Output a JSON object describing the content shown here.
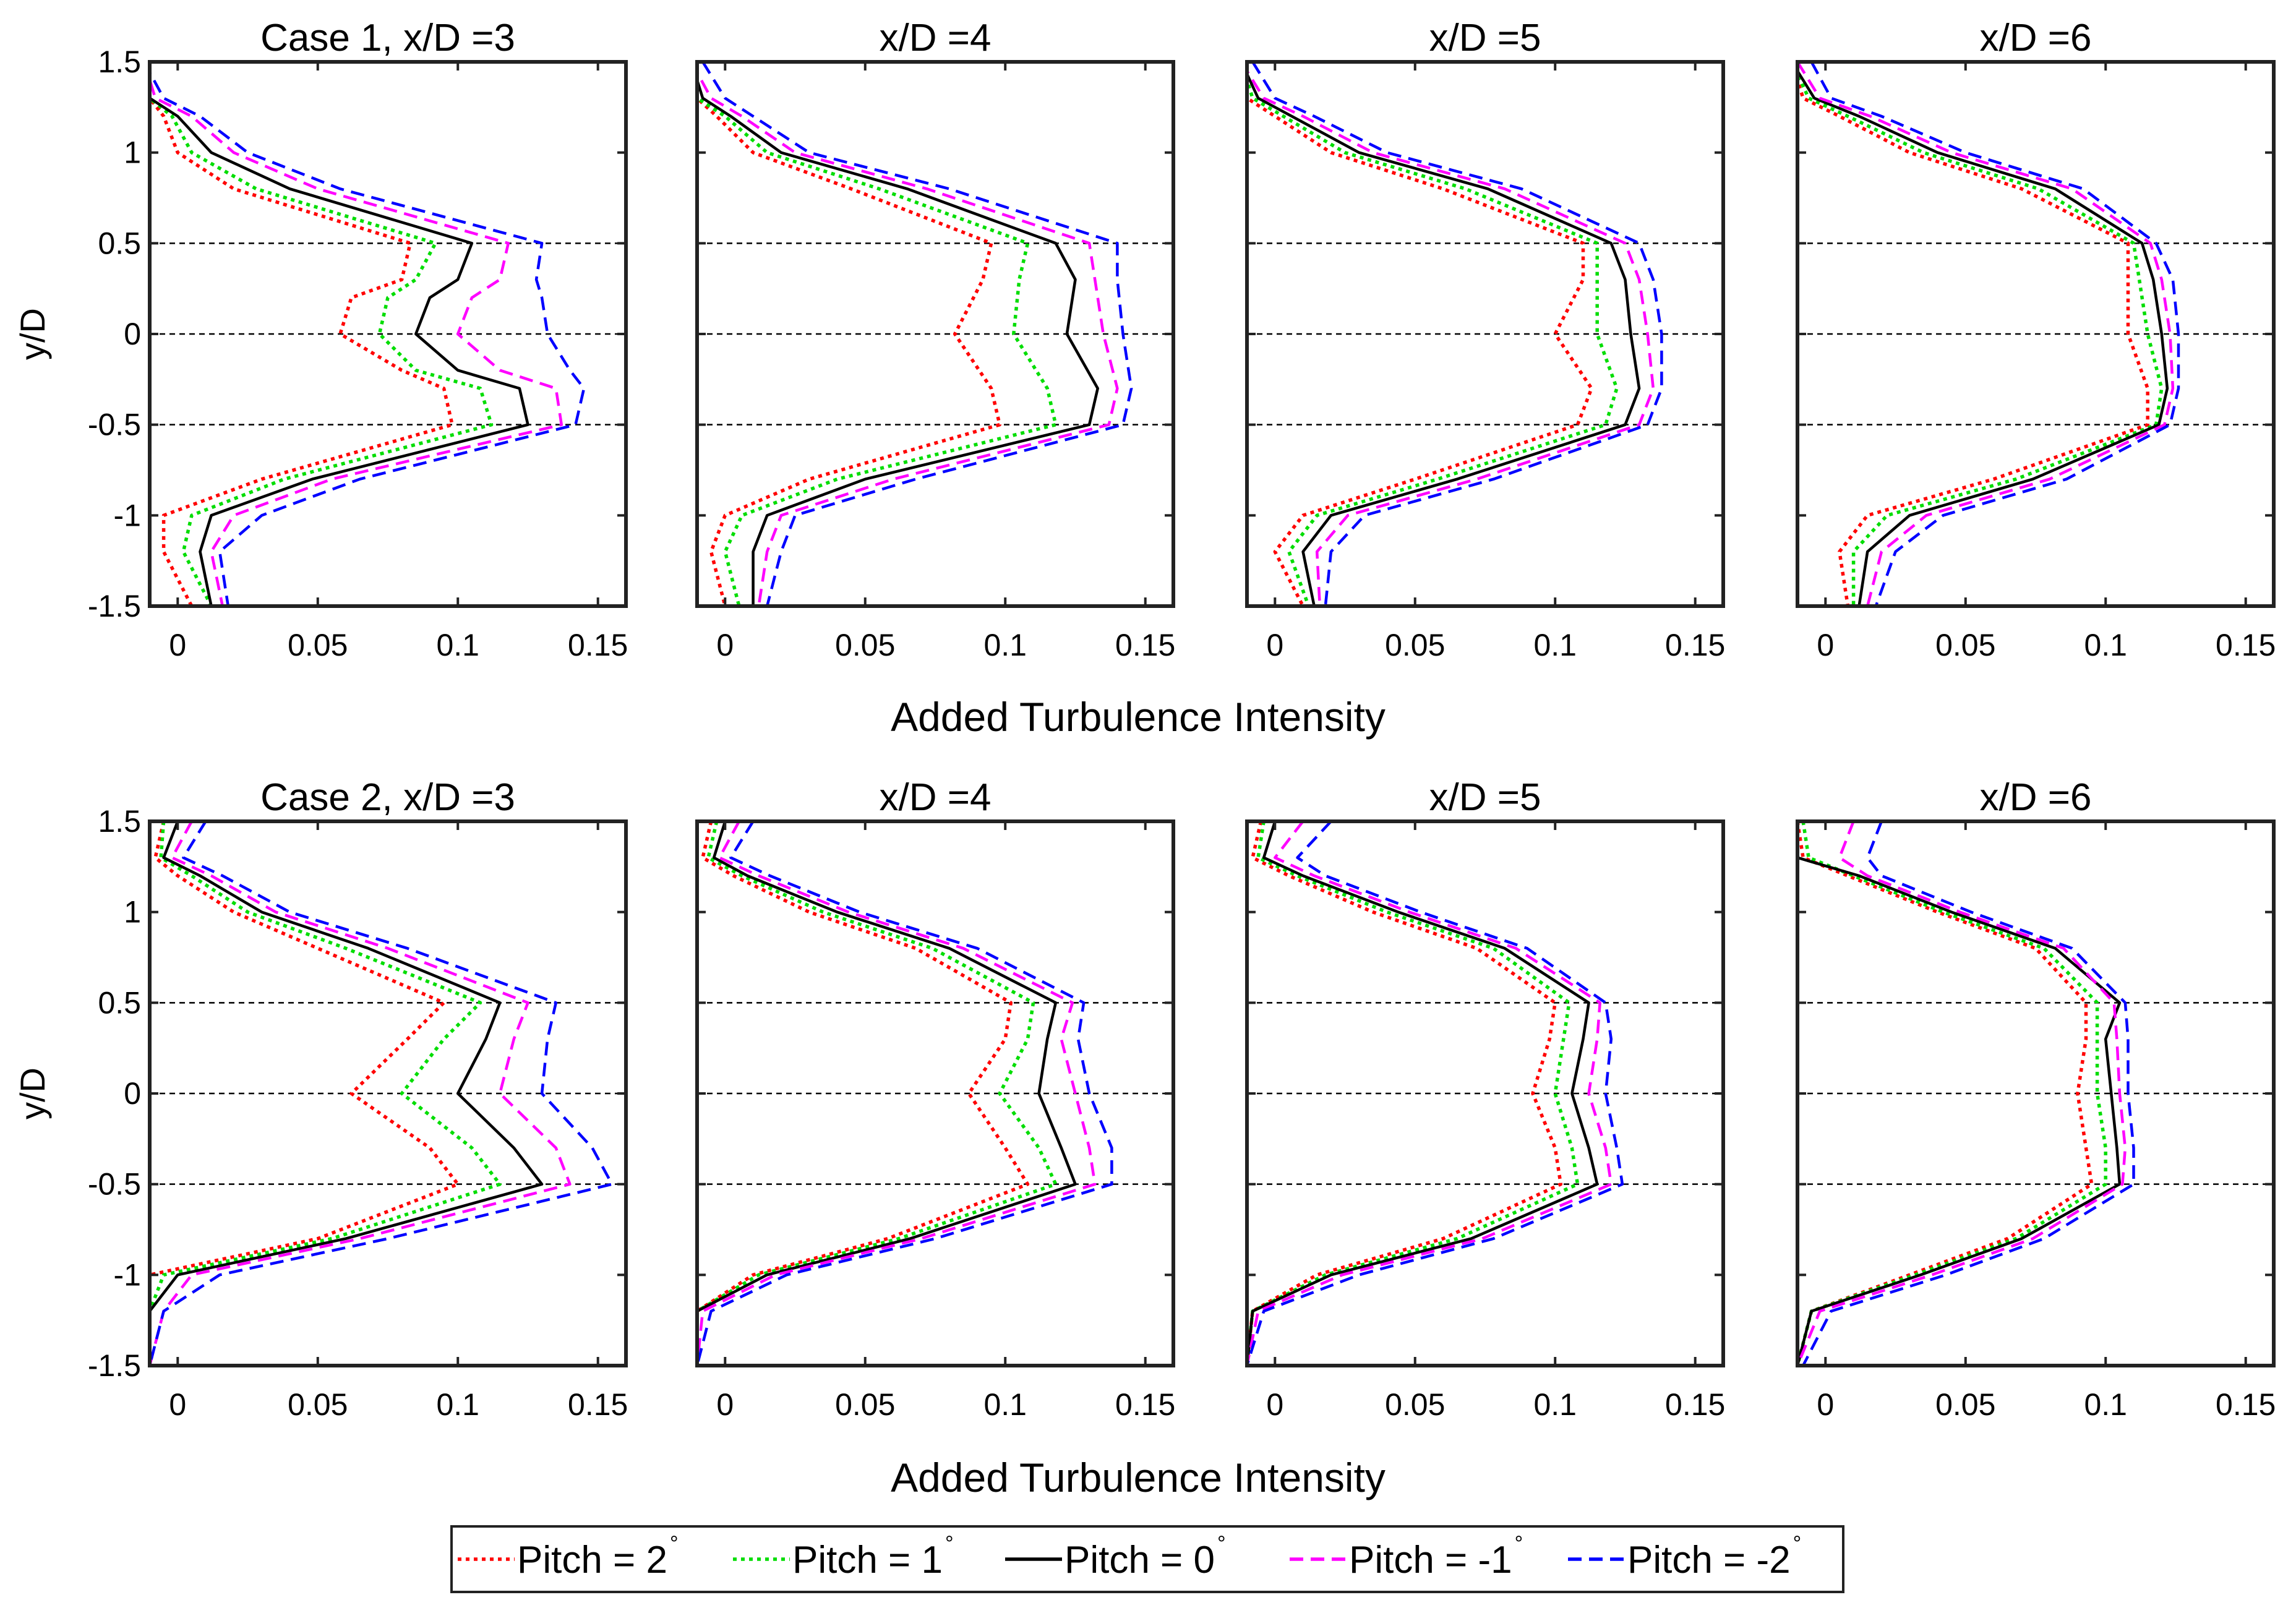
{
  "chart_data": {
    "type": "line",
    "ylabel": "y/D",
    "xlabel": "Added Turbulence Intensity",
    "xlim": [
      -0.01,
      0.16
    ],
    "ylim": [
      -1.5,
      1.5
    ],
    "xticks": [
      "0",
      "0.05",
      "0.1",
      "0.15"
    ],
    "yticks": [
      "1.5",
      "1",
      "0.5",
      "0",
      "-0.5",
      "-1",
      "-1.5"
    ],
    "reference_lines_y": [
      0.5,
      0,
      -0.5
    ],
    "legend_placement": "bottom-center",
    "series_styles": [
      {
        "name": "Pitch = 2",
        "degree_symbol": "°",
        "color": "#ff0000",
        "dash": "dotted"
      },
      {
        "name": "Pitch = 1",
        "degree_symbol": "°",
        "color": "#00dd00",
        "dash": "dotted"
      },
      {
        "name": "Pitch = 0",
        "degree_symbol": "°",
        "color": "#000000",
        "dash": "solid"
      },
      {
        "name": "Pitch = -1",
        "degree_symbol": "°",
        "color": "#ff00ff",
        "dash": "dashed"
      },
      {
        "name": "Pitch = -2",
        "degree_symbol": "°",
        "color": "#0000ff",
        "dash": "dashed"
      }
    ],
    "panels": [
      {
        "title": "Case 1, x/D =3",
        "y": [
          1.5,
          1.3,
          1.2,
          1.0,
          0.8,
          0.5,
          0.3,
          0.2,
          0.0,
          -0.2,
          -0.3,
          -0.5,
          -0.8,
          -1.0,
          -1.2,
          -1.5
        ],
        "series": [
          {
            "name": "Pitch = 2",
            "values": [
              -0.012,
              -0.01,
              -0.005,
              0.0,
              0.02,
              0.083,
              0.08,
              0.062,
              0.058,
              0.08,
              0.095,
              0.098,
              0.03,
              -0.005,
              -0.005,
              0.005
            ]
          },
          {
            "name": "Pitch = 1",
            "values": [
              -0.012,
              -0.01,
              -0.002,
              0.005,
              0.028,
              0.092,
              0.085,
              0.075,
              0.072,
              0.085,
              0.108,
              0.112,
              0.038,
              0.005,
              0.002,
              0.012
            ]
          },
          {
            "name": "Pitch = 0",
            "values": [
              -0.012,
              -0.01,
              0.0,
              0.012,
              0.04,
              0.105,
              0.1,
              0.09,
              0.085,
              0.1,
              0.122,
              0.125,
              0.048,
              0.012,
              0.008,
              0.012
            ]
          },
          {
            "name": "Pitch = -1",
            "values": [
              -0.012,
              -0.008,
              0.005,
              0.02,
              0.05,
              0.118,
              0.115,
              0.105,
              0.1,
              0.115,
              0.135,
              0.137,
              0.055,
              0.02,
              0.012,
              0.016
            ]
          },
          {
            "name": "Pitch = -2",
            "values": [
              -0.012,
              -0.005,
              0.008,
              0.025,
              0.058,
              0.13,
              0.128,
              0.13,
              0.132,
              0.14,
              0.145,
              0.142,
              0.065,
              0.03,
              0.015,
              0.018
            ]
          }
        ]
      },
      {
        "title": "x/D =4",
        "y": [
          1.5,
          1.3,
          1.2,
          1.0,
          0.8,
          0.5,
          0.3,
          0.0,
          -0.3,
          -0.5,
          -0.8,
          -1.0,
          -1.2,
          -1.5
        ],
        "series": [
          {
            "name": "Pitch = 2",
            "values": [
              -0.012,
              -0.01,
              -0.003,
              0.01,
              0.045,
              0.095,
              0.092,
              0.082,
              0.095,
              0.098,
              0.03,
              0.0,
              -0.005,
              0.0
            ]
          },
          {
            "name": "Pitch = 1",
            "values": [
              -0.012,
              -0.01,
              0.0,
              0.015,
              0.055,
              0.108,
              0.105,
              0.103,
              0.115,
              0.118,
              0.04,
              0.006,
              0.0,
              0.005
            ]
          },
          {
            "name": "Pitch = 0",
            "values": [
              -0.012,
              -0.008,
              0.002,
              0.02,
              0.065,
              0.118,
              0.125,
              0.122,
              0.133,
              0.13,
              0.05,
              0.015,
              0.01,
              0.01
            ]
          },
          {
            "name": "Pitch = -1",
            "values": [
              -0.012,
              -0.005,
              0.006,
              0.025,
              0.072,
              0.13,
              0.132,
              0.135,
              0.14,
              0.137,
              0.06,
              0.02,
              0.015,
              0.012
            ]
          },
          {
            "name": "Pitch = -2",
            "values": [
              -0.008,
              0.0,
              0.01,
              0.03,
              0.08,
              0.14,
              0.14,
              0.142,
              0.145,
              0.142,
              0.068,
              0.025,
              0.02,
              0.015
            ]
          }
        ]
      },
      {
        "title": "x/D =5",
        "y": [
          1.5,
          1.3,
          1.2,
          1.0,
          0.8,
          0.5,
          0.3,
          0.0,
          -0.3,
          -0.5,
          -0.8,
          -1.0,
          -1.2,
          -1.5
        ],
        "series": [
          {
            "name": "Pitch = 2",
            "values": [
              -0.012,
              -0.01,
              0.0,
              0.02,
              0.06,
              0.11,
              0.11,
              0.1,
              0.113,
              0.108,
              0.05,
              0.01,
              0.0,
              0.01
            ]
          },
          {
            "name": "Pitch = 1",
            "values": [
              -0.012,
              -0.008,
              0.003,
              0.025,
              0.068,
              0.115,
              0.115,
              0.115,
              0.122,
              0.118,
              0.058,
              0.015,
              0.005,
              0.012
            ]
          },
          {
            "name": "Pitch = 0",
            "values": [
              -0.012,
              -0.006,
              0.006,
              0.03,
              0.076,
              0.12,
              0.125,
              0.127,
              0.13,
              0.125,
              0.065,
              0.02,
              0.01,
              0.014
            ]
          },
          {
            "name": "Pitch = -1",
            "values": [
              -0.012,
              -0.004,
              0.01,
              0.035,
              0.082,
              0.125,
              0.13,
              0.133,
              0.135,
              0.13,
              0.072,
              0.026,
              0.015,
              0.016
            ]
          },
          {
            "name": "Pitch = -2",
            "values": [
              -0.008,
              0.0,
              0.014,
              0.04,
              0.088,
              0.13,
              0.135,
              0.138,
              0.138,
              0.133,
              0.078,
              0.032,
              0.02,
              0.018
            ]
          }
        ]
      },
      {
        "title": "x/D =6",
        "y": [
          1.5,
          1.3,
          1.2,
          1.0,
          0.8,
          0.5,
          0.3,
          0.0,
          -0.3,
          -0.5,
          -0.8,
          -1.0,
          -1.2,
          -1.5
        ],
        "series": [
          {
            "name": "Pitch = 2",
            "values": [
              -0.012,
              -0.008,
              0.005,
              0.03,
              0.07,
              0.108,
              0.108,
              0.108,
              0.115,
              0.115,
              0.06,
              0.015,
              0.005,
              0.008
            ]
          },
          {
            "name": "Pitch = 1",
            "values": [
              -0.012,
              -0.006,
              0.008,
              0.035,
              0.076,
              0.11,
              0.112,
              0.115,
              0.12,
              0.118,
              0.068,
              0.022,
              0.01,
              0.01
            ]
          },
          {
            "name": "Pitch = 0",
            "values": [
              -0.012,
              -0.004,
              0.012,
              0.04,
              0.082,
              0.113,
              0.117,
              0.12,
              0.122,
              0.119,
              0.074,
              0.03,
              0.015,
              0.012
            ]
          },
          {
            "name": "Pitch = -1",
            "values": [
              -0.01,
              -0.002,
              0.016,
              0.045,
              0.088,
              0.116,
              0.12,
              0.123,
              0.124,
              0.121,
              0.08,
              0.036,
              0.02,
              0.015
            ]
          },
          {
            "name": "Pitch = -2",
            "values": [
              -0.005,
              0.002,
              0.02,
              0.05,
              0.092,
              0.118,
              0.124,
              0.126,
              0.126,
              0.123,
              0.086,
              0.042,
              0.025,
              0.018
            ]
          }
        ]
      },
      {
        "title": "Case 2, x/D =3",
        "y": [
          1.5,
          1.3,
          1.2,
          1.0,
          0.8,
          0.5,
          0.3,
          0.0,
          -0.3,
          -0.5,
          -0.8,
          -1.0,
          -1.2,
          -1.5
        ],
        "series": [
          {
            "name": "Pitch = 2",
            "values": [
              -0.005,
              -0.008,
              0.0,
              0.02,
              0.05,
              0.095,
              0.082,
              0.062,
              0.09,
              0.1,
              0.05,
              -0.01,
              -0.01,
              -0.01
            ]
          },
          {
            "name": "Pitch = 1",
            "values": [
              -0.005,
              -0.006,
              0.005,
              0.025,
              0.06,
              0.108,
              0.095,
              0.08,
              0.105,
              0.115,
              0.055,
              -0.005,
              -0.01,
              -0.01
            ]
          },
          {
            "name": "Pitch = 0",
            "values": [
              0.0,
              -0.005,
              0.008,
              0.03,
              0.068,
              0.115,
              0.11,
              0.1,
              0.12,
              0.13,
              0.06,
              0.0,
              -0.01,
              -0.01
            ]
          },
          {
            "name": "Pitch = -1",
            "values": [
              0.005,
              -0.002,
              0.012,
              0.035,
              0.075,
              0.125,
              0.12,
              0.115,
              0.135,
              0.14,
              0.065,
              0.005,
              -0.005,
              -0.01
            ]
          },
          {
            "name": "Pitch = -2",
            "values": [
              0.01,
              0.002,
              0.016,
              0.04,
              0.082,
              0.135,
              0.132,
              0.13,
              0.148,
              0.155,
              0.075,
              0.015,
              -0.005,
              -0.01
            ]
          }
        ]
      },
      {
        "title": "x/D =4",
        "y": [
          1.5,
          1.3,
          1.2,
          1.0,
          0.8,
          0.5,
          0.3,
          0.0,
          -0.3,
          -0.5,
          -0.8,
          -1.0,
          -1.2,
          -1.5
        ],
        "series": [
          {
            "name": "Pitch = 2",
            "values": [
              -0.005,
              -0.008,
              0.003,
              0.03,
              0.068,
              0.102,
              0.1,
              0.087,
              0.1,
              0.108,
              0.058,
              0.01,
              -0.01,
              -0.01
            ]
          },
          {
            "name": "Pitch = 1",
            "values": [
              -0.003,
              -0.006,
              0.006,
              0.035,
              0.074,
              0.11,
              0.108,
              0.098,
              0.112,
              0.118,
              0.062,
              0.012,
              -0.01,
              -0.01
            ]
          },
          {
            "name": "Pitch = 0",
            "values": [
              0.0,
              -0.004,
              0.008,
              0.04,
              0.08,
              0.118,
              0.115,
              0.112,
              0.12,
              0.125,
              0.066,
              0.015,
              -0.01,
              -0.01
            ]
          },
          {
            "name": "Pitch = -1",
            "values": [
              0.005,
              -0.002,
              0.012,
              0.044,
              0.085,
              0.124,
              0.12,
              0.125,
              0.13,
              0.132,
              0.07,
              0.018,
              -0.008,
              -0.01
            ]
          },
          {
            "name": "Pitch = -2",
            "values": [
              0.01,
              0.002,
              0.016,
              0.048,
              0.09,
              0.128,
              0.126,
              0.13,
              0.138,
              0.138,
              0.075,
              0.022,
              -0.005,
              -0.01
            ]
          }
        ]
      },
      {
        "title": "x/D =5",
        "y": [
          1.5,
          1.3,
          1.2,
          1.0,
          0.8,
          0.5,
          0.3,
          0.0,
          -0.3,
          -0.5,
          -0.8,
          -1.0,
          -1.2,
          -1.5
        ],
        "series": [
          {
            "name": "Pitch = 2",
            "values": [
              -0.005,
              -0.008,
              0.005,
              0.035,
              0.072,
              0.1,
              0.098,
              0.092,
              0.1,
              0.102,
              0.06,
              0.015,
              -0.008,
              -0.01
            ]
          },
          {
            "name": "Pitch = 1",
            "values": [
              -0.004,
              -0.006,
              0.008,
              0.04,
              0.078,
              0.105,
              0.103,
              0.1,
              0.106,
              0.108,
              0.065,
              0.018,
              -0.008,
              -0.01
            ]
          },
          {
            "name": "Pitch = 0",
            "values": [
              0.0,
              -0.004,
              0.01,
              0.044,
              0.082,
              0.112,
              0.11,
              0.106,
              0.112,
              0.115,
              0.07,
              0.02,
              -0.008,
              -0.01
            ]
          },
          {
            "name": "Pitch = -1",
            "values": [
              0.01,
              0.0,
              0.014,
              0.048,
              0.086,
              0.116,
              0.115,
              0.112,
              0.118,
              0.12,
              0.074,
              0.024,
              -0.006,
              -0.01
            ]
          },
          {
            "name": "Pitch = -2",
            "values": [
              0.02,
              0.008,
              0.018,
              0.052,
              0.09,
              0.118,
              0.12,
              0.118,
              0.122,
              0.124,
              0.078,
              0.03,
              -0.004,
              -0.01
            ]
          }
        ]
      },
      {
        "title": "x/D =6",
        "y": [
          1.5,
          1.3,
          1.2,
          1.0,
          0.8,
          0.5,
          0.3,
          0.0,
          -0.3,
          -0.5,
          -0.8,
          -1.0,
          -1.2,
          -1.5
        ],
        "series": [
          {
            "name": "Pitch = 2",
            "values": [
              -0.01,
              -0.008,
              0.008,
              0.04,
              0.075,
              0.093,
              0.093,
              0.09,
              0.093,
              0.095,
              0.065,
              0.03,
              -0.005,
              -0.01
            ]
          },
          {
            "name": "Pitch = 1",
            "values": [
              -0.008,
              -0.006,
              0.01,
              0.042,
              0.078,
              0.097,
              0.097,
              0.097,
              0.1,
              0.1,
              0.068,
              0.032,
              -0.005,
              -0.01
            ]
          },
          {
            "name": "Pitch = 0",
            "values": [
              -0.01,
              -0.01,
              0.012,
              0.045,
              0.082,
              0.105,
              0.1,
              0.102,
              0.104,
              0.105,
              0.07,
              0.034,
              -0.005,
              -0.01
            ]
          },
          {
            "name": "Pitch = -1",
            "values": [
              0.01,
              0.005,
              0.015,
              0.048,
              0.085,
              0.103,
              0.104,
              0.105,
              0.107,
              0.106,
              0.074,
              0.038,
              -0.002,
              -0.01
            ]
          },
          {
            "name": "Pitch = -2",
            "values": [
              0.02,
              0.015,
              0.02,
              0.052,
              0.088,
              0.107,
              0.108,
              0.108,
              0.11,
              0.11,
              0.078,
              0.043,
              0.002,
              -0.008
            ]
          }
        ]
      }
    ]
  }
}
